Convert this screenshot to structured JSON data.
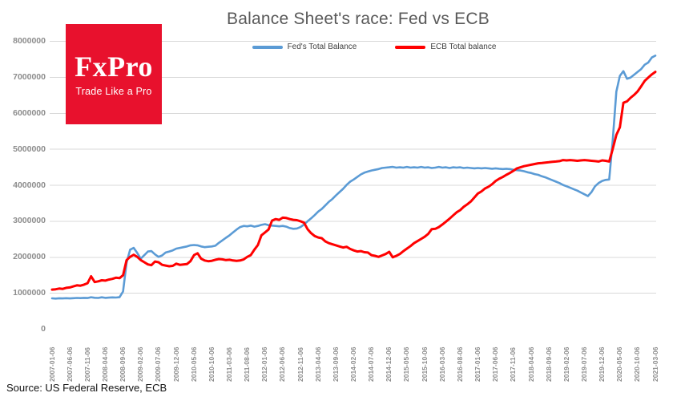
{
  "title": "Balance Sheet's race: Fed vs ECB",
  "source_note": "Source: US Federal Reserve, ECB",
  "logo": {
    "wordmark": "FxPro",
    "tagline": "Trade Like a Pro",
    "background_color": "#e8112d",
    "text_color": "#ffffff"
  },
  "colors": {
    "fed_line": "#5b9bd5",
    "ecb_line": "#ff0000",
    "gridline": "#d9d9d9",
    "axis_label": "#8c8c8c",
    "title_text": "#595959",
    "legend_text": "#404040"
  },
  "chart_data": {
    "type": "line",
    "title": "Balance Sheet's race: Fed vs ECB",
    "legend_position": "top-center",
    "grid": "horizontal",
    "ylim": [
      0,
      8000000
    ],
    "y_ticks": [
      0,
      1000000,
      2000000,
      3000000,
      4000000,
      5000000,
      6000000,
      7000000,
      8000000
    ],
    "x_tick_labels": [
      "2007-01-06",
      "2007-06-06",
      "2007-11-06",
      "2008-04-06",
      "2008-09-06",
      "2009-02-06",
      "2009-07-06",
      "2009-12-06",
      "2010-05-06",
      "2010-10-06",
      "2011-03-06",
      "2011-08-06",
      "2012-01-06",
      "2012-06-06",
      "2012-11-06",
      "2013-04-06",
      "2013-09-06",
      "2014-02-06",
      "2014-07-06",
      "2014-12-06",
      "2015-05-06",
      "2015-10-06",
      "2016-03-06",
      "2016-08-06",
      "2017-01-06",
      "2017-06-06",
      "2017-11-06",
      "2018-04-06",
      "2018-09-06",
      "2019-02-06",
      "2019-07-06",
      "2019-12-06",
      "2020-05-06",
      "2020-10-06",
      "2021-03-06"
    ],
    "series": [
      {
        "name": "Fed's Total Balance",
        "color": "#5b9bd5",
        "start_month": "2007-01",
        "interval": "monthly",
        "values": [
          858000,
          852000,
          860000,
          855000,
          863000,
          856000,
          862000,
          869000,
          864000,
          871000,
          866000,
          890000,
          873000,
          869000,
          886000,
          872000,
          878000,
          885000,
          880000,
          890000,
          1050000,
          1850000,
          2210000,
          2260000,
          2120000,
          1960000,
          2060000,
          2160000,
          2170000,
          2080000,
          2010000,
          2050000,
          2130000,
          2160000,
          2190000,
          2240000,
          2260000,
          2280000,
          2300000,
          2330000,
          2340000,
          2330000,
          2300000,
          2280000,
          2290000,
          2300000,
          2320000,
          2400000,
          2470000,
          2540000,
          2610000,
          2690000,
          2770000,
          2840000,
          2870000,
          2860000,
          2880000,
          2850000,
          2870000,
          2900000,
          2920000,
          2890000,
          2880000,
          2870000,
          2860000,
          2870000,
          2850000,
          2810000,
          2790000,
          2800000,
          2840000,
          2910000,
          3000000,
          3080000,
          3170000,
          3270000,
          3340000,
          3440000,
          3540000,
          3620000,
          3720000,
          3810000,
          3900000,
          4010000,
          4100000,
          4160000,
          4230000,
          4300000,
          4350000,
          4380000,
          4410000,
          4430000,
          4450000,
          4480000,
          4490000,
          4500000,
          4510000,
          4490000,
          4500000,
          4490000,
          4510000,
          4490000,
          4500000,
          4490000,
          4510000,
          4490000,
          4500000,
          4480000,
          4490000,
          4510000,
          4490000,
          4500000,
          4480000,
          4500000,
          4490000,
          4500000,
          4480000,
          4490000,
          4480000,
          4470000,
          4480000,
          4470000,
          4480000,
          4470000,
          4460000,
          4470000,
          4460000,
          4450000,
          4460000,
          4450000,
          4430000,
          4420000,
          4410000,
          4390000,
          4360000,
          4340000,
          4310000,
          4290000,
          4250000,
          4220000,
          4180000,
          4140000,
          4100000,
          4060000,
          4010000,
          3970000,
          3930000,
          3890000,
          3850000,
          3800000,
          3750000,
          3700000,
          3810000,
          3970000,
          4060000,
          4120000,
          4150000,
          4160000,
          5250000,
          6600000,
          7040000,
          7170000,
          6960000,
          6990000,
          7070000,
          7150000,
          7230000,
          7350000,
          7410000,
          7550000,
          7600000
        ]
      },
      {
        "name": "ECB Total balance",
        "color": "#ff0000",
        "start_month": "2007-01",
        "interval": "monthly",
        "values": [
          1100000,
          1110000,
          1130000,
          1120000,
          1150000,
          1160000,
          1190000,
          1220000,
          1210000,
          1240000,
          1280000,
          1470000,
          1310000,
          1330000,
          1360000,
          1350000,
          1380000,
          1400000,
          1430000,
          1420000,
          1500000,
          1920000,
          2010000,
          2070000,
          2010000,
          1920000,
          1860000,
          1800000,
          1780000,
          1880000,
          1860000,
          1790000,
          1770000,
          1750000,
          1760000,
          1820000,
          1790000,
          1800000,
          1810000,
          1890000,
          2060000,
          2110000,
          1960000,
          1910000,
          1890000,
          1900000,
          1930000,
          1950000,
          1940000,
          1920000,
          1930000,
          1910000,
          1900000,
          1910000,
          1940000,
          2010000,
          2060000,
          2210000,
          2340000,
          2610000,
          2690000,
          2770000,
          3020000,
          3060000,
          3040000,
          3100000,
          3090000,
          3060000,
          3040000,
          3030000,
          3000000,
          2960000,
          2780000,
          2670000,
          2590000,
          2550000,
          2530000,
          2440000,
          2390000,
          2360000,
          2330000,
          2300000,
          2270000,
          2290000,
          2230000,
          2190000,
          2160000,
          2170000,
          2140000,
          2130000,
          2060000,
          2040000,
          2010000,
          2050000,
          2090000,
          2150000,
          2000000,
          2040000,
          2090000,
          2170000,
          2240000,
          2310000,
          2390000,
          2450000,
          2510000,
          2570000,
          2650000,
          2780000,
          2790000,
          2840000,
          2910000,
          2990000,
          3070000,
          3160000,
          3250000,
          3310000,
          3400000,
          3470000,
          3550000,
          3660000,
          3770000,
          3830000,
          3910000,
          3960000,
          4030000,
          4120000,
          4180000,
          4230000,
          4290000,
          4340000,
          4400000,
          4470000,
          4500000,
          4530000,
          4550000,
          4570000,
          4590000,
          4610000,
          4620000,
          4630000,
          4640000,
          4650000,
          4660000,
          4670000,
          4700000,
          4690000,
          4700000,
          4690000,
          4680000,
          4690000,
          4700000,
          4690000,
          4680000,
          4670000,
          4660000,
          4690000,
          4680000,
          4660000,
          5010000,
          5400000,
          5610000,
          6290000,
          6330000,
          6430000,
          6510000,
          6610000,
          6750000,
          6900000,
          6990000,
          7080000,
          7150000
        ]
      }
    ]
  }
}
